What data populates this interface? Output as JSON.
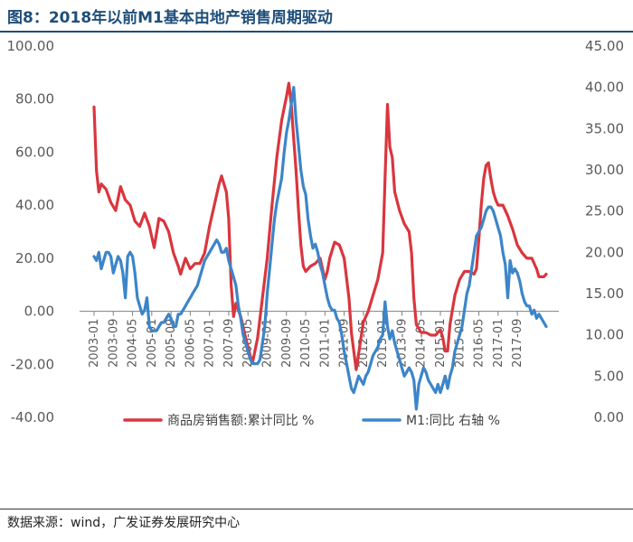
{
  "title": "图8：2018年以前M1基本由地产销售周期驱动",
  "source": "数据来源：wind，广发证券发展研究中心",
  "colors": {
    "series1": "#d9363e",
    "series2": "#3c85c8",
    "header": "#1f4e79",
    "axis_text": "#595959"
  },
  "chart_data": {
    "type": "line",
    "title": "图8：2018年以前M1基本由地产销售周期驱动",
    "x_start": "2003-01",
    "x_tick_labels": [
      "2003-01",
      "2003-09",
      "2004-05",
      "2005-01",
      "2005-09",
      "2006-05",
      "2007-01",
      "2007-09",
      "2008-05",
      "2009-01",
      "2009-09",
      "2010-05",
      "2011-01",
      "2011-09",
      "2012-05",
      "2013-01",
      "2013-09",
      "2014-05",
      "2015-01",
      "2015-09",
      "2016-05",
      "2017-01",
      "2017-09"
    ],
    "y_left": {
      "range": [
        -40,
        100
      ],
      "ticks": [
        "-40.00",
        "-20.00",
        "0.00",
        "20.00",
        "40.00",
        "60.00",
        "80.00",
        "100.00"
      ]
    },
    "y_right": {
      "range": [
        0,
        45
      ],
      "ticks": [
        "0.00",
        "5.00",
        "10.00",
        "15.00",
        "20.00",
        "25.00",
        "30.00",
        "35.00",
        "40.00",
        "45.00"
      ]
    },
    "series": [
      {
        "name": "商品房销售额:累计同比 %",
        "axis": "left",
        "color": "#d9363e",
        "points": [
          [
            0,
            77
          ],
          [
            1,
            53
          ],
          [
            2,
            45
          ],
          [
            3,
            48
          ],
          [
            5,
            46
          ],
          [
            7,
            41
          ],
          [
            9,
            38
          ],
          [
            11,
            47
          ],
          [
            13,
            42
          ],
          [
            15,
            40
          ],
          [
            17,
            34
          ],
          [
            19,
            32
          ],
          [
            21,
            37
          ],
          [
            23,
            32
          ],
          [
            25,
            24
          ],
          [
            27,
            35
          ],
          [
            29,
            34
          ],
          [
            31,
            30
          ],
          [
            33,
            22
          ],
          [
            35,
            17
          ],
          [
            36,
            14
          ],
          [
            38,
            20
          ],
          [
            40,
            16
          ],
          [
            42,
            18
          ],
          [
            44,
            18
          ],
          [
            46,
            22
          ],
          [
            48,
            32
          ],
          [
            50,
            40
          ],
          [
            52,
            48
          ],
          [
            53,
            51
          ],
          [
            55,
            45
          ],
          [
            56,
            35
          ],
          [
            57,
            10
          ],
          [
            58,
            -2
          ],
          [
            59,
            3
          ],
          [
            61,
            -2
          ],
          [
            63,
            -10
          ],
          [
            65,
            -17
          ],
          [
            66,
            -19
          ],
          [
            68,
            -10
          ],
          [
            70,
            5
          ],
          [
            72,
            20
          ],
          [
            74,
            40
          ],
          [
            76,
            58
          ],
          [
            78,
            72
          ],
          [
            80,
            81
          ],
          [
            81,
            86
          ],
          [
            82,
            78
          ],
          [
            83,
            65
          ],
          [
            84,
            53
          ],
          [
            85,
            38
          ],
          [
            86,
            25
          ],
          [
            87,
            17
          ],
          [
            88,
            15
          ],
          [
            90,
            17
          ],
          [
            92,
            18
          ],
          [
            94,
            20
          ],
          [
            96,
            12
          ],
          [
            97,
            15
          ],
          [
            98,
            20
          ],
          [
            100,
            26
          ],
          [
            102,
            25
          ],
          [
            104,
            20
          ],
          [
            106,
            5
          ],
          [
            107,
            -8
          ],
          [
            108,
            -15
          ],
          [
            109,
            -22
          ],
          [
            110,
            -16
          ],
          [
            111,
            -10
          ],
          [
            112,
            -4
          ],
          [
            114,
            0
          ],
          [
            116,
            6
          ],
          [
            118,
            12
          ],
          [
            120,
            22
          ],
          [
            121,
            50
          ],
          [
            122,
            78
          ],
          [
            123,
            62
          ],
          [
            124,
            58
          ],
          [
            125,
            45
          ],
          [
            127,
            38
          ],
          [
            129,
            33
          ],
          [
            131,
            30
          ],
          [
            132,
            22
          ],
          [
            133,
            5
          ],
          [
            134,
            -5
          ],
          [
            136,
            -8
          ],
          [
            138,
            -8
          ],
          [
            140,
            -9
          ],
          [
            142,
            -9
          ],
          [
            144,
            -7
          ],
          [
            145,
            -10
          ],
          [
            146,
            -15
          ],
          [
            147,
            -15
          ],
          [
            148,
            -5
          ],
          [
            150,
            6
          ],
          [
            152,
            12
          ],
          [
            154,
            15
          ],
          [
            156,
            15
          ],
          [
            158,
            14
          ],
          [
            159,
            16
          ],
          [
            160,
            27
          ],
          [
            161,
            40
          ],
          [
            162,
            50
          ],
          [
            163,
            55
          ],
          [
            164,
            56
          ],
          [
            165,
            50
          ],
          [
            166,
            45
          ],
          [
            167,
            42
          ],
          [
            168,
            40
          ],
          [
            170,
            40
          ],
          [
            172,
            36
          ],
          [
            174,
            31
          ],
          [
            176,
            25
          ],
          [
            178,
            22
          ],
          [
            180,
            20
          ],
          [
            182,
            20
          ],
          [
            184,
            16
          ],
          [
            185,
            13
          ],
          [
            187,
            13
          ],
          [
            188,
            14
          ]
        ]
      },
      {
        "name": "M1:同比 右轴 %",
        "axis": "right",
        "color": "#3c85c8",
        "points": [
          [
            0,
            19.5
          ],
          [
            1,
            19
          ],
          [
            2,
            20
          ],
          [
            3,
            18
          ],
          [
            4,
            19
          ],
          [
            5,
            20
          ],
          [
            6,
            20
          ],
          [
            7,
            19.5
          ],
          [
            8,
            17.5
          ],
          [
            9,
            18.5
          ],
          [
            10,
            19.5
          ],
          [
            11,
            19
          ],
          [
            12,
            17.5
          ],
          [
            13,
            14.5
          ],
          [
            14,
            19.5
          ],
          [
            15,
            20
          ],
          [
            16,
            19.5
          ],
          [
            17,
            17.5
          ],
          [
            18,
            14.5
          ],
          [
            19,
            13.5
          ],
          [
            20,
            12.5
          ],
          [
            21,
            13
          ],
          [
            22,
            14.5
          ],
          [
            23,
            11
          ],
          [
            24,
            10.5
          ],
          [
            25,
            10.5
          ],
          [
            26,
            10.5
          ],
          [
            27,
            11
          ],
          [
            28,
            11.5
          ],
          [
            29,
            11.5
          ],
          [
            30,
            12
          ],
          [
            31,
            12.5
          ],
          [
            32,
            12
          ],
          [
            33,
            11
          ],
          [
            34,
            11
          ],
          [
            35,
            12.5
          ],
          [
            36,
            12.5
          ],
          [
            37,
            13
          ],
          [
            38,
            13.5
          ],
          [
            39,
            14
          ],
          [
            40,
            14.5
          ],
          [
            41,
            15
          ],
          [
            42,
            15.5
          ],
          [
            43,
            16
          ],
          [
            44,
            17
          ],
          [
            45,
            18
          ],
          [
            46,
            19
          ],
          [
            47,
            19.5
          ],
          [
            48,
            20
          ],
          [
            49,
            20.5
          ],
          [
            50,
            21
          ],
          [
            51,
            21.5
          ],
          [
            52,
            21
          ],
          [
            53,
            20
          ],
          [
            54,
            20
          ],
          [
            55,
            20.5
          ],
          [
            56,
            19
          ],
          [
            57,
            18
          ],
          [
            58,
            17
          ],
          [
            59,
            16
          ],
          [
            60,
            13.5
          ],
          [
            61,
            12
          ],
          [
            62,
            10
          ],
          [
            63,
            9
          ],
          [
            64,
            8
          ],
          [
            65,
            7
          ],
          [
            66,
            6.5
          ],
          [
            67,
            6.5
          ],
          [
            68,
            6.5
          ],
          [
            69,
            7
          ],
          [
            70,
            9
          ],
          [
            71,
            11
          ],
          [
            72,
            15
          ],
          [
            73,
            18
          ],
          [
            74,
            21
          ],
          [
            75,
            24
          ],
          [
            76,
            26
          ],
          [
            77,
            27.5
          ],
          [
            78,
            29
          ],
          [
            79,
            32
          ],
          [
            80,
            34.5
          ],
          [
            81,
            36
          ],
          [
            82,
            38
          ],
          [
            83,
            40
          ],
          [
            84,
            36
          ],
          [
            85,
            33
          ],
          [
            86,
            30
          ],
          [
            87,
            28
          ],
          [
            88,
            27
          ],
          [
            89,
            24
          ],
          [
            90,
            22
          ],
          [
            91,
            20.5
          ],
          [
            92,
            21
          ],
          [
            93,
            20
          ],
          [
            94,
            18.5
          ],
          [
            95,
            17.5
          ],
          [
            96,
            16
          ],
          [
            97,
            14.5
          ],
          [
            98,
            13.5
          ],
          [
            99,
            13
          ],
          [
            100,
            13
          ],
          [
            101,
            12
          ],
          [
            102,
            11.5
          ],
          [
            103,
            10
          ],
          [
            104,
            8
          ],
          [
            105,
            6.5
          ],
          [
            106,
            5
          ],
          [
            107,
            3.5
          ],
          [
            108,
            3
          ],
          [
            109,
            4
          ],
          [
            110,
            5
          ],
          [
            111,
            4.5
          ],
          [
            112,
            4
          ],
          [
            113,
            5
          ],
          [
            114,
            5.5
          ],
          [
            115,
            6.5
          ],
          [
            116,
            7.5
          ],
          [
            117,
            8
          ],
          [
            118,
            8.5
          ],
          [
            119,
            9.5
          ],
          [
            120,
            10
          ],
          [
            121,
            14
          ],
          [
            122,
            11
          ],
          [
            123,
            9.5
          ],
          [
            124,
            10.5
          ],
          [
            125,
            9
          ],
          [
            126,
            8
          ],
          [
            127,
            7
          ],
          [
            128,
            6
          ],
          [
            129,
            5
          ],
          [
            130,
            5.5
          ],
          [
            131,
            6
          ],
          [
            132,
            5.5
          ],
          [
            133,
            4.5
          ],
          [
            134,
            1
          ],
          [
            135,
            4
          ],
          [
            136,
            5
          ],
          [
            137,
            6
          ],
          [
            138,
            5.5
          ],
          [
            139,
            4.5
          ],
          [
            140,
            4
          ],
          [
            141,
            3.5
          ],
          [
            142,
            3
          ],
          [
            143,
            4
          ],
          [
            144,
            3
          ],
          [
            145,
            4
          ],
          [
            146,
            5
          ],
          [
            147,
            3.5
          ],
          [
            148,
            5
          ],
          [
            149,
            6
          ],
          [
            150,
            8
          ],
          [
            151,
            9
          ],
          [
            152,
            10
          ],
          [
            153,
            11
          ],
          [
            154,
            13
          ],
          [
            155,
            15
          ],
          [
            156,
            16
          ],
          [
            157,
            18
          ],
          [
            158,
            20
          ],
          [
            159,
            22
          ],
          [
            160,
            22.5
          ],
          [
            161,
            23
          ],
          [
            162,
            24
          ],
          [
            163,
            25
          ],
          [
            164,
            25.5
          ],
          [
            165,
            25.5
          ],
          [
            166,
            25
          ],
          [
            167,
            24
          ],
          [
            168,
            23
          ],
          [
            169,
            22
          ],
          [
            170,
            20
          ],
          [
            171,
            18.5
          ],
          [
            172,
            14.5
          ],
          [
            173,
            19
          ],
          [
            174,
            17.5
          ],
          [
            175,
            18
          ],
          [
            176,
            17.5
          ],
          [
            177,
            16.5
          ],
          [
            178,
            15
          ],
          [
            179,
            14
          ],
          [
            180,
            13.5
          ],
          [
            181,
            13.5
          ],
          [
            182,
            12.5
          ],
          [
            183,
            13
          ],
          [
            184,
            12
          ],
          [
            185,
            12.5
          ],
          [
            186,
            12
          ],
          [
            187,
            11.5
          ],
          [
            188,
            11
          ]
        ]
      }
    ],
    "legend": {
      "placement": "bottom",
      "entries": [
        "商品房销售额:累计同比 %",
        "M1:同比  右轴 %"
      ]
    }
  }
}
